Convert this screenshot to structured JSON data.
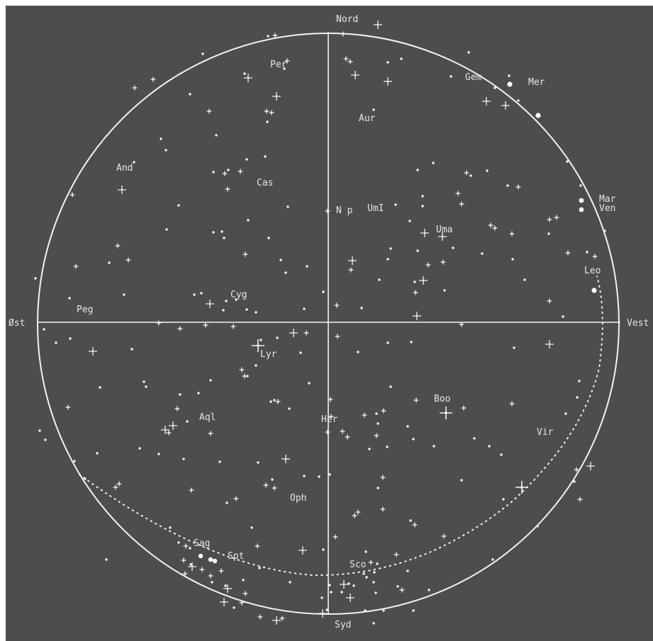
{
  "colors": {
    "background": "#4d4d4d",
    "ink": "#f2f2f2",
    "frame": "#ffffff"
  },
  "directions": {
    "north": "Nord",
    "south": "Syd",
    "east": "Øst",
    "west": "Vest"
  },
  "pole_label": "N p",
  "constellations": [
    "Per",
    "Gem",
    "Aur",
    "And",
    "Cas",
    "UmI",
    "Uma",
    "Cyg",
    "Peg",
    "Lyr",
    "Boo",
    "Aql",
    "Her",
    "Vir",
    "Oph",
    "Sag",
    "Sco",
    "Leo"
  ],
  "planets": [
    "Mer",
    "Mar",
    "Ven",
    "Spt"
  ]
}
